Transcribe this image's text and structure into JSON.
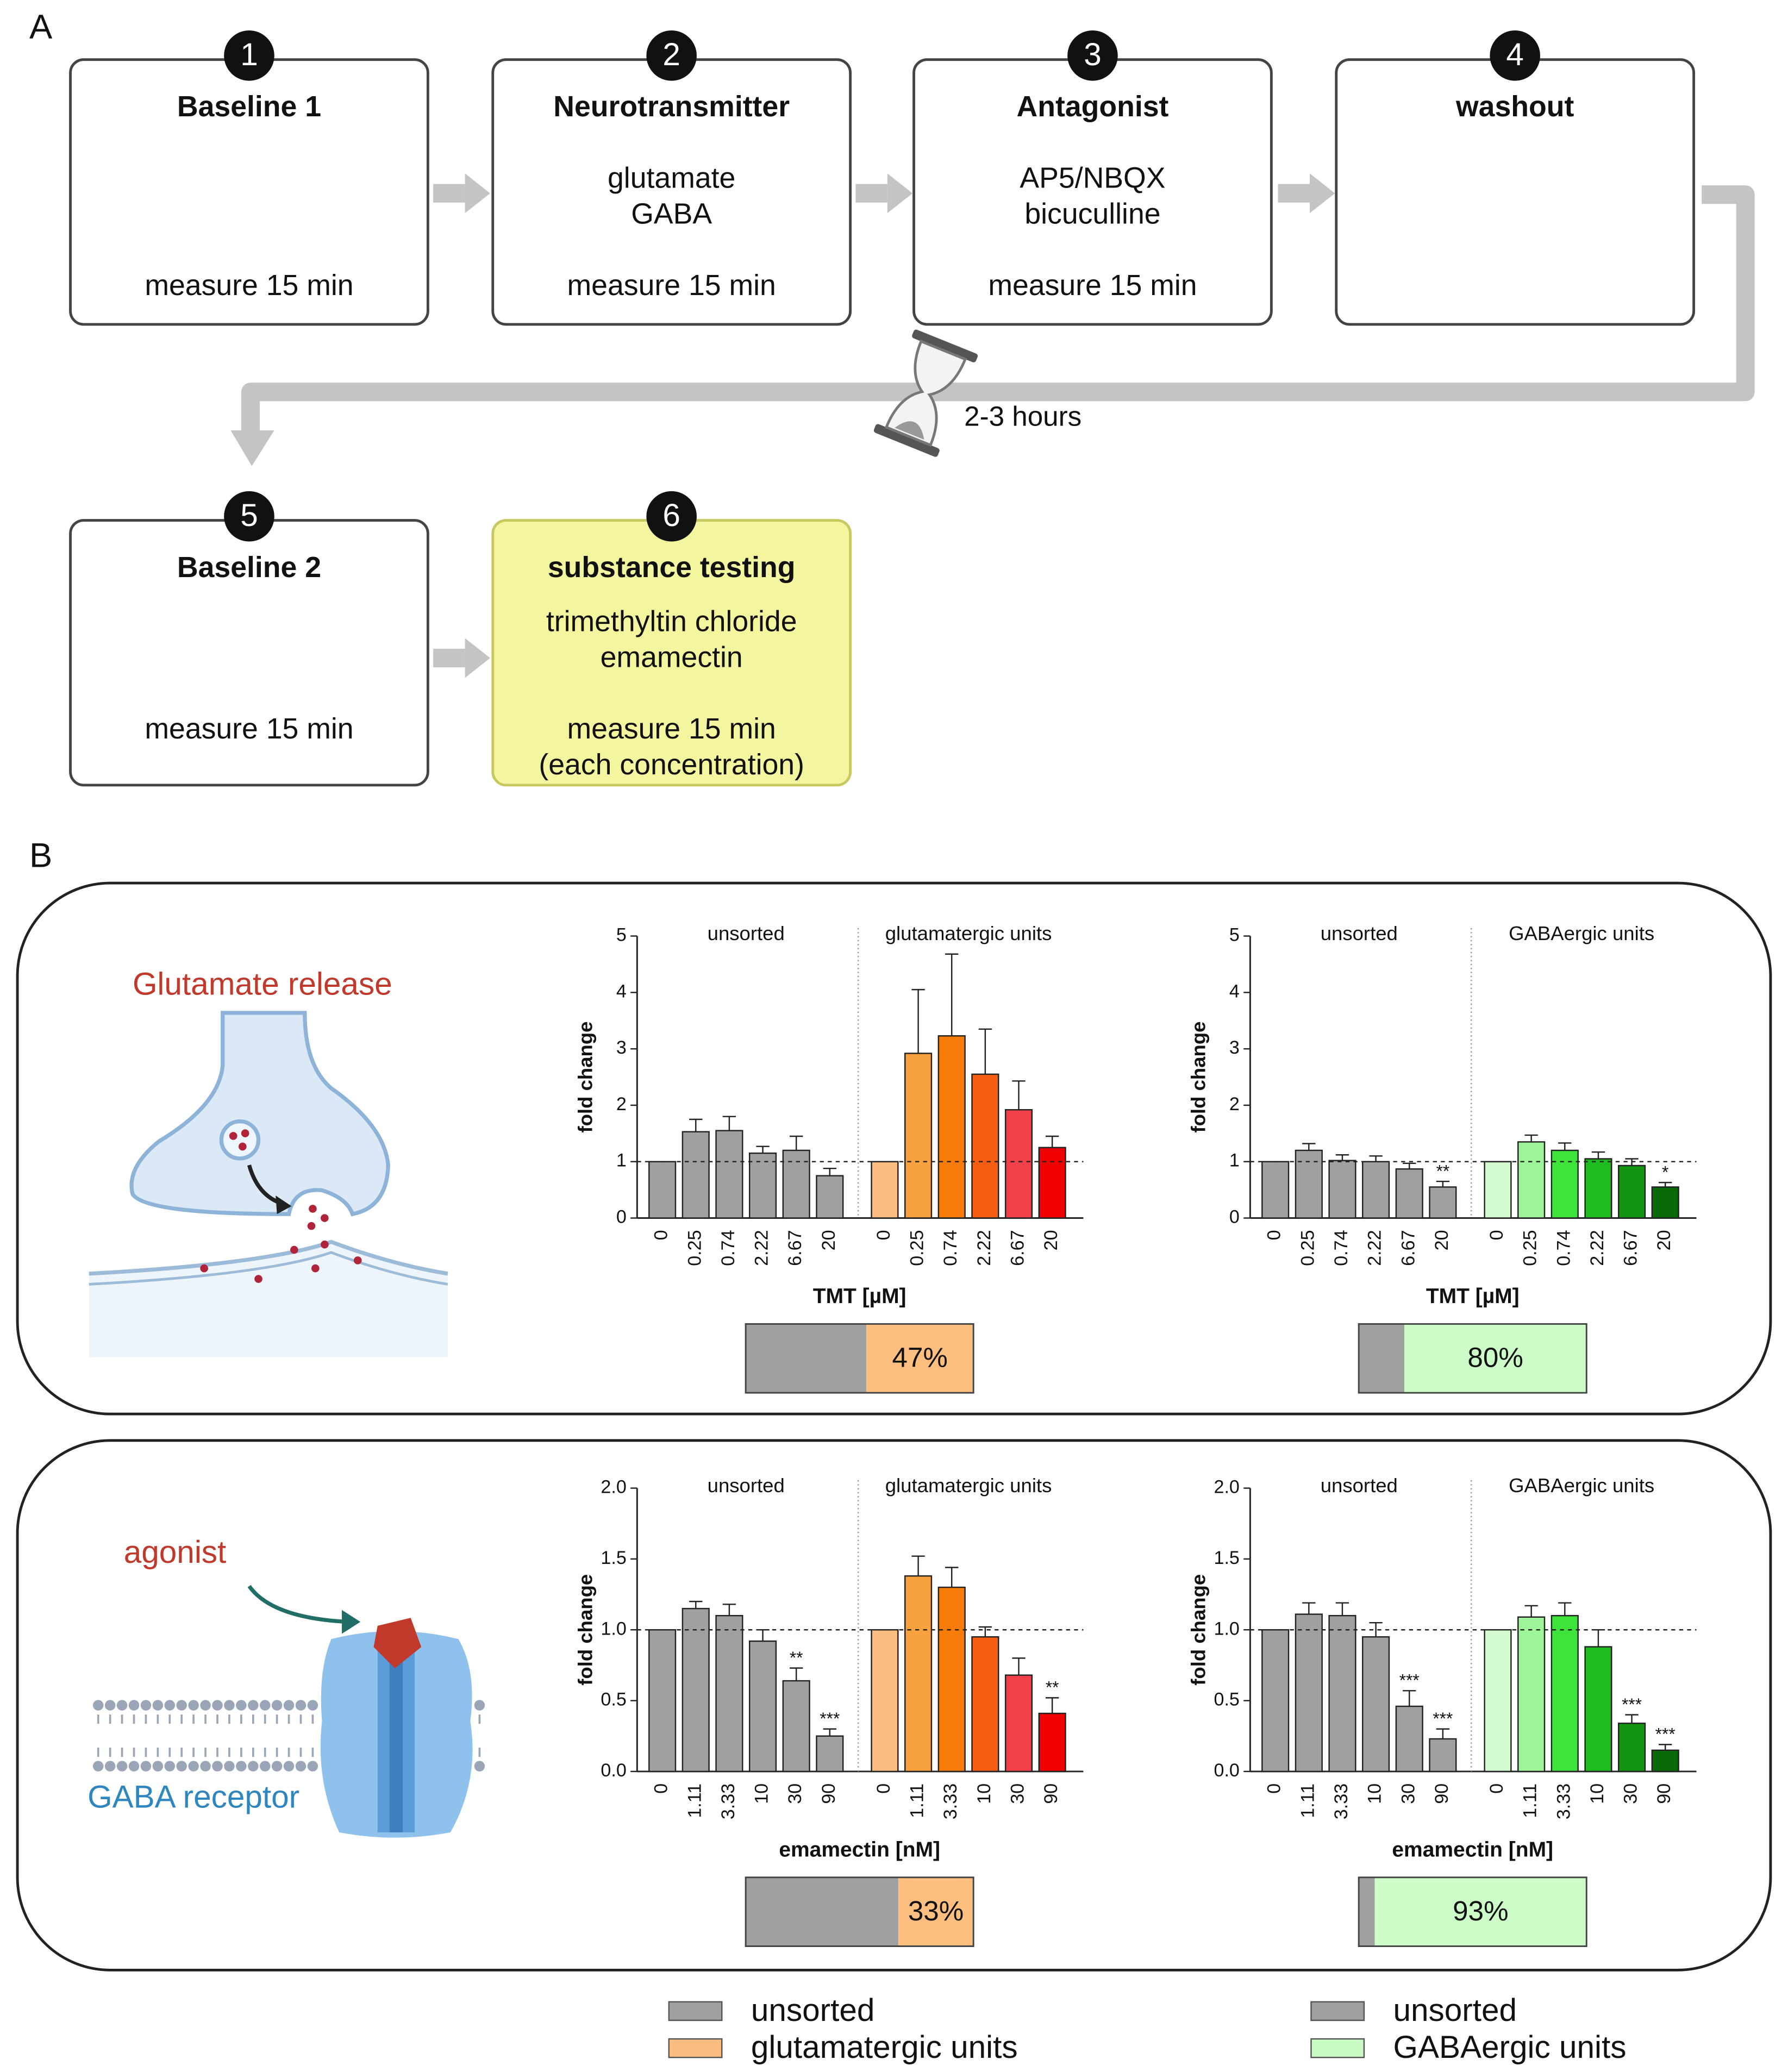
{
  "panel_a": {
    "label": "A",
    "steps": [
      {
        "number": 1,
        "title": "Baseline 1",
        "footer": [
          "measure 15 min"
        ]
      },
      {
        "number": 2,
        "title": "Neurotransmitter",
        "lines": [
          "glutamate",
          "GABA"
        ],
        "footer": [
          "measure 15 min"
        ]
      },
      {
        "number": 3,
        "title": "Antagonist",
        "lines": [
          "AP5/NBQX",
          "bicuculline"
        ],
        "footer": [
          "measure 15 min"
        ]
      },
      {
        "number": 4,
        "title": "washout"
      },
      {
        "number": 5,
        "title": "Baseline 2",
        "footer": [
          "measure 15 min"
        ]
      },
      {
        "number": 6,
        "title": "substance testing",
        "lines": [
          "trimethyltin chloride",
          "emamectin"
        ],
        "footer": [
          "measure 15 min",
          "(each concentration)"
        ],
        "color": "#f4f59f"
      }
    ],
    "wait": "2-3 hours"
  },
  "panel_b": {
    "label": "B",
    "illustrations": [
      "Glutamate release",
      "agonist",
      "GABA receptor"
    ],
    "legends": [
      {
        "items": [
          {
            "name": "unsorted",
            "color": "#a0a0a2"
          },
          {
            "name": "glutamatergic units",
            "color": "#fbbd7f"
          }
        ]
      },
      {
        "items": [
          {
            "name": "unsorted",
            "color": "#a0a0a2"
          },
          {
            "name": "GABAergic units",
            "color": "#c8fcc4"
          }
        ]
      }
    ]
  },
  "chart_data": [
    {
      "type": "bar",
      "y_label": "fold change",
      "x_label": "TMT [µM]",
      "categories": [
        "0",
        "0.25",
        "0.74",
        "2.22",
        "6.67",
        "20"
      ],
      "ylim": [
        0,
        5
      ],
      "yticks": [
        0,
        1,
        2,
        3,
        4,
        5
      ],
      "reference_line": 1,
      "series": [
        {
          "name": "unsorted",
          "color": "#a0a0a2",
          "values": [
            1.0,
            1.53,
            1.55,
            1.15,
            1.2,
            0.75
          ],
          "errors": [
            0,
            0.22,
            0.25,
            0.12,
            0.25,
            0.13
          ],
          "stars": [
            null,
            null,
            null,
            null,
            null,
            null
          ]
        },
        {
          "name": "glutamatergic units",
          "colors": [
            "#fbbd7f",
            "#f8a13f",
            "#f87c0a",
            "#f55d13",
            "#f2404a",
            "#f00000"
          ],
          "values": [
            1.0,
            2.92,
            3.23,
            2.55,
            1.92,
            1.25
          ],
          "errors": [
            0,
            1.13,
            1.45,
            0.8,
            0.51,
            0.2
          ],
          "stars": [
            null,
            null,
            null,
            null,
            null,
            null
          ]
        }
      ],
      "share": {
        "values": [
          47
        ],
        "value_labels": [
          "47%"
        ],
        "xlim": [
          0,
          100
        ],
        "colors": [
          "#a0a0a2",
          "#fdbf80"
        ]
      }
    },
    {
      "type": "bar",
      "y_label": "fold change",
      "x_label": "TMT [µM]",
      "categories": [
        "0",
        "0.25",
        "0.74",
        "2.22",
        "6.67",
        "20"
      ],
      "ylim": [
        0,
        5
      ],
      "yticks": [
        0,
        1,
        2,
        3,
        4,
        5
      ],
      "reference_line": 1,
      "series": [
        {
          "name": "unsorted",
          "color": "#a0a0a2",
          "values": [
            1.0,
            1.2,
            1.02,
            1.0,
            0.87,
            0.55
          ],
          "errors": [
            0,
            0.12,
            0.1,
            0.1,
            0.1,
            0.1
          ],
          "stars": [
            null,
            null,
            null,
            null,
            null,
            "**"
          ]
        },
        {
          "name": "GABAergic units",
          "colors": [
            "#d4fbd0",
            "#9ff59a",
            "#3ee43c",
            "#1fbc21",
            "#139413",
            "#0a6a0a"
          ],
          "values": [
            1.0,
            1.35,
            1.2,
            1.05,
            0.93,
            0.55
          ],
          "errors": [
            0,
            0.12,
            0.13,
            0.12,
            0.12,
            0.08
          ],
          "stars": [
            null,
            null,
            null,
            null,
            null,
            "*"
          ]
        }
      ],
      "share": {
        "values": [
          80
        ],
        "value_labels": [
          "80%"
        ],
        "xlim": [
          0,
          100
        ],
        "colors": [
          "#a0a0a2",
          "#ccfdc8"
        ]
      }
    },
    {
      "type": "bar",
      "y_label": "fold change",
      "x_label": "emamectin [nM]",
      "categories": [
        "0",
        "1.11",
        "3.33",
        "10",
        "30",
        "90"
      ],
      "ylim": [
        0,
        2
      ],
      "yticks": [
        {
          "value": 0,
          "label": "0.0"
        },
        0.5,
        {
          "value": 1,
          "label": "1.0"
        },
        1.5,
        {
          "value": 2,
          "label": "2.0"
        }
      ],
      "reference_line": 1,
      "series": [
        {
          "name": "unsorted",
          "color": "#a0a0a2",
          "values": [
            1.0,
            1.15,
            1.1,
            0.92,
            0.64,
            0.25
          ],
          "errors": [
            0,
            0.05,
            0.08,
            0.08,
            0.09,
            0.05
          ],
          "stars": [
            null,
            null,
            null,
            null,
            "**",
            "***"
          ]
        },
        {
          "name": "glutamatergic units",
          "colors": [
            "#fbbd7f",
            "#f8a13f",
            "#f87c0a",
            "#f55d13",
            "#f2404a",
            "#f00000"
          ],
          "values": [
            1.0,
            1.38,
            1.3,
            0.95,
            0.68,
            0.41
          ],
          "errors": [
            0,
            0.14,
            0.14,
            0.07,
            0.12,
            0.11
          ],
          "stars": [
            null,
            null,
            null,
            null,
            null,
            "**"
          ]
        }
      ],
      "share": {
        "values": [
          33
        ],
        "value_labels": [
          "33%"
        ],
        "xlim": [
          0,
          100
        ],
        "colors": [
          "#a0a0a2",
          "#fdbf80"
        ]
      }
    },
    {
      "type": "bar",
      "y_label": "fold change",
      "x_label": "emamectin [nM]",
      "categories": [
        "0",
        "1.11",
        "3.33",
        "10",
        "30",
        "90"
      ],
      "ylim": [
        0,
        2
      ],
      "yticks": [
        {
          "value": 0,
          "label": "0.0"
        },
        0.5,
        {
          "value": 1,
          "label": "1.0"
        },
        1.5,
        {
          "value": 2,
          "label": "2.0"
        }
      ],
      "reference_line": 1,
      "series": [
        {
          "name": "unsorted",
          "color": "#a0a0a2",
          "values": [
            1.0,
            1.11,
            1.1,
            0.95,
            0.46,
            0.23
          ],
          "errors": [
            0,
            0.08,
            0.09,
            0.1,
            0.11,
            0.07
          ],
          "stars": [
            null,
            null,
            null,
            null,
            "***",
            "***"
          ]
        },
        {
          "name": "GABAergic units",
          "colors": [
            "#d4fbd0",
            "#9ff59a",
            "#3ee43c",
            "#1fbc21",
            "#139413",
            "#0a6a0a"
          ],
          "values": [
            1.0,
            1.09,
            1.1,
            0.88,
            0.34,
            0.15
          ],
          "errors": [
            0,
            0.08,
            0.09,
            0.12,
            0.06,
            0.04
          ],
          "stars": [
            null,
            null,
            null,
            null,
            "***",
            "***"
          ]
        }
      ],
      "share": {
        "values": [
          93
        ],
        "value_labels": [
          "93%"
        ],
        "xlim": [
          0,
          100
        ],
        "colors": [
          "#a0a0a2",
          "#ccfdc8"
        ]
      }
    }
  ]
}
